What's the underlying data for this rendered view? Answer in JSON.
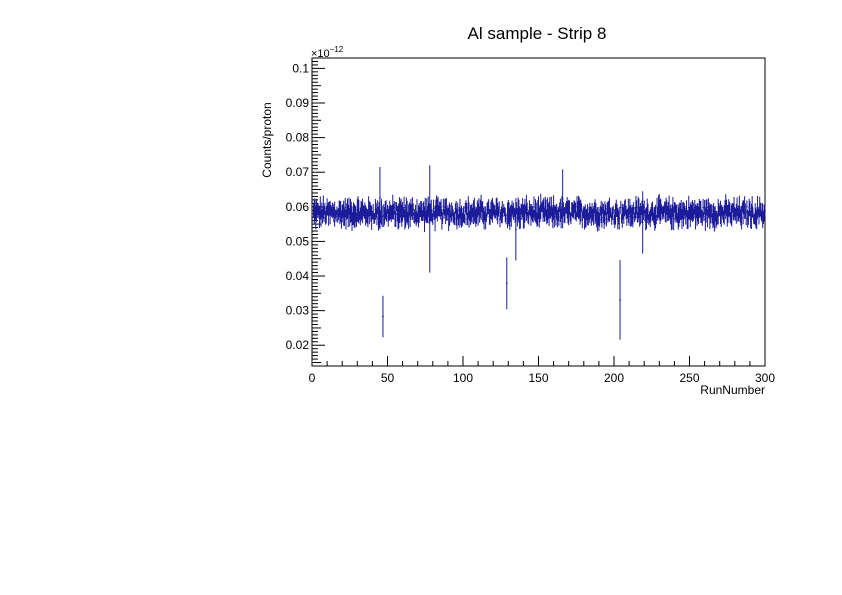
{
  "chart_data": {
    "type": "scatter",
    "title": "Al sample - Strip 8",
    "xlabel": "RunNumber",
    "ylabel": "Counts/proton",
    "y_multiplier": "×10",
    "y_multiplier_exponent": "−12",
    "xlim": [
      0,
      300
    ],
    "ylim": [
      0.014,
      0.103
    ],
    "x_ticks": [
      0,
      50,
      100,
      150,
      200,
      250,
      300
    ],
    "x_tick_labels": [
      "0",
      "50",
      "100",
      "150",
      "200",
      "250",
      "300"
    ],
    "y_ticks": [
      0.02,
      0.03,
      0.04,
      0.05,
      0.06,
      0.07,
      0.08,
      0.09,
      0.1
    ],
    "y_tick_labels": [
      "0.02",
      "0.03",
      "0.04",
      "0.05",
      "0.06",
      "0.07",
      "0.08",
      "0.09",
      "0.1"
    ],
    "marker_color": "#1a1a99",
    "grid": false,
    "outliers": [
      {
        "x": 47,
        "y": 0.0283,
        "err": 0.006
      },
      {
        "x": 129,
        "y": 0.0379,
        "err": 0.0075
      },
      {
        "x": 204,
        "y": 0.0331,
        "err": 0.0115
      },
      {
        "x": 78,
        "y": 0.0565,
        "err": 0.0155
      },
      {
        "x": 135,
        "y": 0.0535,
        "err": 0.009
      },
      {
        "x": 166,
        "y": 0.0623,
        "err": 0.0085
      },
      {
        "x": 219,
        "y": 0.0555,
        "err": 0.009
      },
      {
        "x": 45,
        "y": 0.0625,
        "err": 0.009
      }
    ],
    "baseline": {
      "x_start": 1,
      "x_end": 300,
      "mean": 0.0582,
      "spread": 0.0015,
      "typical_err": 0.0025
    }
  }
}
